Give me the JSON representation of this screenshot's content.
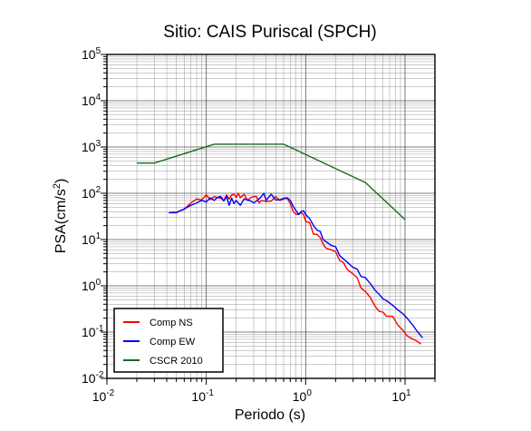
{
  "chart_data": {
    "type": "line",
    "title": "Sitio: CAIS Puriscal (SPCH)",
    "xlabel": "Periodo (s)",
    "ylabel_main": "PSA(cm/s",
    "ylabel_sup": "2",
    "ylabel_close": ")",
    "x_scale": "log",
    "y_scale": "log",
    "xlim": [
      0.01,
      20
    ],
    "ylim": [
      0.01,
      100000
    ],
    "grid": true,
    "legend_position": "bottom-left",
    "x_ticks": [
      {
        "base": "10",
        "exp": "-2"
      },
      {
        "base": "10",
        "exp": "-1"
      },
      {
        "base": "10",
        "exp": "0"
      },
      {
        "base": "10",
        "exp": "1"
      }
    ],
    "y_ticks": [
      {
        "base": "10",
        "exp": "-2"
      },
      {
        "base": "10",
        "exp": "-1"
      },
      {
        "base": "10",
        "exp": "0"
      },
      {
        "base": "10",
        "exp": "1"
      },
      {
        "base": "10",
        "exp": "2"
      },
      {
        "base": "10",
        "exp": "3"
      },
      {
        "base": "10",
        "exp": "4"
      },
      {
        "base": "10",
        "exp": "5"
      }
    ],
    "series": [
      {
        "name": "Comp NS",
        "color": "#ff0000",
        "points": [
          [
            0.042,
            38
          ],
          [
            0.05,
            39
          ],
          [
            0.06,
            45
          ],
          [
            0.07,
            62
          ],
          [
            0.08,
            75
          ],
          [
            0.09,
            72
          ],
          [
            0.1,
            92
          ],
          [
            0.11,
            73
          ],
          [
            0.12,
            85
          ],
          [
            0.13,
            80
          ],
          [
            0.14,
            78
          ],
          [
            0.15,
            70
          ],
          [
            0.16,
            92
          ],
          [
            0.17,
            75
          ],
          [
            0.18,
            92
          ],
          [
            0.19,
            95
          ],
          [
            0.2,
            82
          ],
          [
            0.21,
            100
          ],
          [
            0.22,
            80
          ],
          [
            0.24,
            95
          ],
          [
            0.26,
            70
          ],
          [
            0.28,
            80
          ],
          [
            0.3,
            85
          ],
          [
            0.32,
            85
          ],
          [
            0.34,
            62
          ],
          [
            0.36,
            70
          ],
          [
            0.4,
            66
          ],
          [
            0.45,
            68
          ],
          [
            0.5,
            85
          ],
          [
            0.55,
            70
          ],
          [
            0.6,
            75
          ],
          [
            0.65,
            78
          ],
          [
            0.7,
            60
          ],
          [
            0.75,
            40
          ],
          [
            0.8,
            35
          ],
          [
            0.85,
            35
          ],
          [
            0.9,
            38
          ],
          [
            0.95,
            35
          ],
          [
            1.0,
            25
          ],
          [
            1.1,
            23
          ],
          [
            1.2,
            13
          ],
          [
            1.3,
            13
          ],
          [
            1.4,
            11
          ],
          [
            1.5,
            8
          ],
          [
            1.6,
            6.5
          ],
          [
            1.8,
            6
          ],
          [
            2.0,
            5.5
          ],
          [
            2.2,
            3.5
          ],
          [
            2.4,
            3.2
          ],
          [
            2.6,
            2.3
          ],
          [
            3.0,
            1.8
          ],
          [
            3.3,
            1.5
          ],
          [
            3.6,
            0.9
          ],
          [
            4.0,
            0.75
          ],
          [
            4.5,
            0.55
          ],
          [
            5.0,
            0.36
          ],
          [
            5.5,
            0.28
          ],
          [
            6.0,
            0.27
          ],
          [
            6.5,
            0.22
          ],
          [
            7.5,
            0.22
          ],
          [
            8.5,
            0.14
          ],
          [
            9.5,
            0.11
          ],
          [
            10.5,
            0.083
          ],
          [
            12.0,
            0.07
          ],
          [
            13.0,
            0.065
          ],
          [
            14.5,
            0.055
          ]
        ]
      },
      {
        "name": "Comp EW",
        "color": "#0000ff",
        "points": [
          [
            0.042,
            38
          ],
          [
            0.05,
            38
          ],
          [
            0.06,
            46
          ],
          [
            0.07,
            55
          ],
          [
            0.08,
            62
          ],
          [
            0.09,
            70
          ],
          [
            0.1,
            65
          ],
          [
            0.11,
            80
          ],
          [
            0.12,
            70
          ],
          [
            0.13,
            82
          ],
          [
            0.14,
            85
          ],
          [
            0.15,
            68
          ],
          [
            0.16,
            85
          ],
          [
            0.17,
            55
          ],
          [
            0.18,
            78
          ],
          [
            0.19,
            60
          ],
          [
            0.2,
            70
          ],
          [
            0.22,
            55
          ],
          [
            0.24,
            75
          ],
          [
            0.26,
            72
          ],
          [
            0.28,
            68
          ],
          [
            0.3,
            62
          ],
          [
            0.32,
            68
          ],
          [
            0.35,
            80
          ],
          [
            0.38,
            100
          ],
          [
            0.4,
            70
          ],
          [
            0.42,
            80
          ],
          [
            0.45,
            95
          ],
          [
            0.5,
            72
          ],
          [
            0.55,
            72
          ],
          [
            0.6,
            78
          ],
          [
            0.65,
            80
          ],
          [
            0.7,
            70
          ],
          [
            0.75,
            52
          ],
          [
            0.8,
            42
          ],
          [
            0.85,
            35
          ],
          [
            0.9,
            40
          ],
          [
            0.95,
            42
          ],
          [
            1.0,
            35
          ],
          [
            1.1,
            28
          ],
          [
            1.2,
            20
          ],
          [
            1.3,
            16
          ],
          [
            1.4,
            15
          ],
          [
            1.5,
            10
          ],
          [
            1.6,
            9
          ],
          [
            1.8,
            7.5
          ],
          [
            2.0,
            7
          ],
          [
            2.2,
            4.5
          ],
          [
            2.4,
            3.8
          ],
          [
            2.6,
            3.3
          ],
          [
            3.0,
            2.5
          ],
          [
            3.3,
            2.3
          ],
          [
            3.6,
            1.6
          ],
          [
            4.0,
            1.5
          ],
          [
            4.5,
            1.1
          ],
          [
            5.0,
            0.8
          ],
          [
            5.5,
            0.65
          ],
          [
            6.0,
            0.52
          ],
          [
            6.5,
            0.48
          ],
          [
            7.5,
            0.38
          ],
          [
            8.5,
            0.3
          ],
          [
            9.5,
            0.25
          ],
          [
            10.5,
            0.2
          ],
          [
            12.0,
            0.14
          ],
          [
            13.0,
            0.11
          ],
          [
            15.0,
            0.075
          ]
        ]
      },
      {
        "name": "CSCR 2010",
        "color": "#1a6a1a",
        "points": [
          [
            0.02,
            450
          ],
          [
            0.03,
            450
          ],
          [
            0.12,
            1150
          ],
          [
            0.6,
            1150
          ],
          [
            4.0,
            170
          ],
          [
            10.0,
            27
          ]
        ]
      }
    ]
  }
}
